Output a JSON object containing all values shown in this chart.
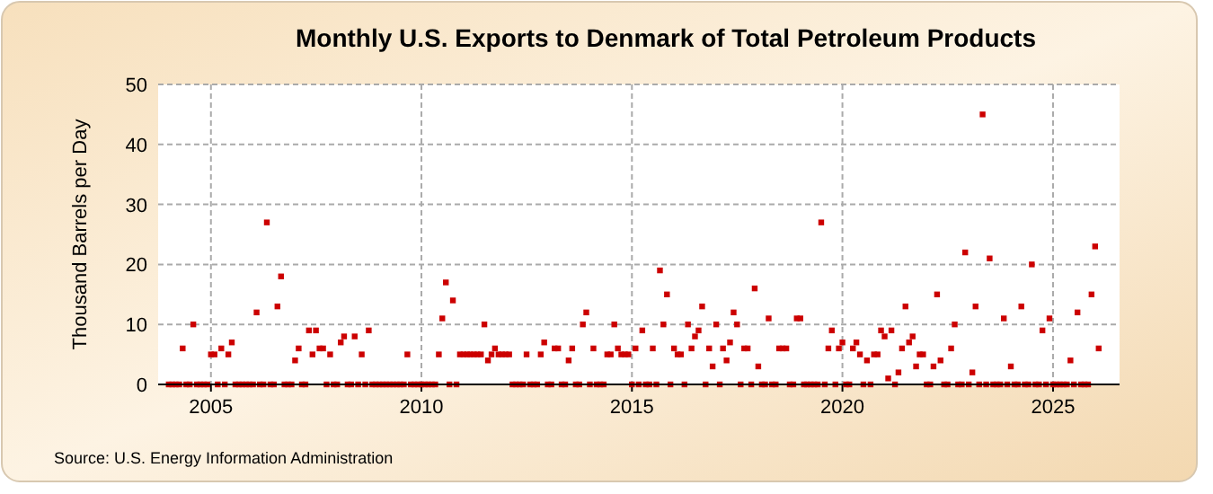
{
  "chart_data": {
    "type": "scatter",
    "title": "Monthly U.S. Exports to Denmark of Total Petroleum Products",
    "ylabel": "Thousand Barrels per Day",
    "annotations": [
      "Source: U.S. Energy Information Administration"
    ],
    "x": [
      "2004-01",
      "2004-02",
      "2004-03",
      "2004-04",
      "2004-05",
      "2004-06",
      "2004-07",
      "2004-08",
      "2004-09",
      "2004-10",
      "2004-11",
      "2004-12",
      "2005-01",
      "2005-02",
      "2005-03",
      "2005-04",
      "2005-05",
      "2005-06",
      "2005-07",
      "2005-08",
      "2005-09",
      "2005-10",
      "2005-11",
      "2005-12",
      "2006-01",
      "2006-02",
      "2006-03",
      "2006-04",
      "2006-05",
      "2006-06",
      "2006-07",
      "2006-08",
      "2006-09",
      "2006-10",
      "2006-11",
      "2006-12",
      "2007-01",
      "2007-02",
      "2007-03",
      "2007-04",
      "2007-05",
      "2007-06",
      "2007-07",
      "2007-08",
      "2007-09",
      "2007-10",
      "2007-11",
      "2007-12",
      "2008-01",
      "2008-02",
      "2008-03",
      "2008-04",
      "2008-05",
      "2008-06",
      "2008-07",
      "2008-08",
      "2008-09",
      "2008-10",
      "2008-11",
      "2008-12",
      "2009-01",
      "2009-02",
      "2009-03",
      "2009-04",
      "2009-05",
      "2009-06",
      "2009-07",
      "2009-08",
      "2009-09",
      "2009-10",
      "2009-11",
      "2009-12",
      "2010-01",
      "2010-02",
      "2010-03",
      "2010-04",
      "2010-05",
      "2010-06",
      "2010-07",
      "2010-08",
      "2010-09",
      "2010-10",
      "2010-11",
      "2010-12",
      "2011-01",
      "2011-02",
      "2011-03",
      "2011-04",
      "2011-05",
      "2011-06",
      "2011-07",
      "2011-08",
      "2011-09",
      "2011-10",
      "2011-11",
      "2011-12",
      "2012-01",
      "2012-02",
      "2012-03",
      "2012-04",
      "2012-05",
      "2012-06",
      "2012-07",
      "2012-08",
      "2012-09",
      "2012-10",
      "2012-11",
      "2012-12",
      "2013-01",
      "2013-02",
      "2013-03",
      "2013-04",
      "2013-05",
      "2013-06",
      "2013-07",
      "2013-08",
      "2013-09",
      "2013-10",
      "2013-11",
      "2013-12",
      "2014-01",
      "2014-02",
      "2014-03",
      "2014-04",
      "2014-05",
      "2014-06",
      "2014-07",
      "2014-08",
      "2014-09",
      "2014-10",
      "2014-11",
      "2014-12",
      "2015-01",
      "2015-02",
      "2015-03",
      "2015-04",
      "2015-05",
      "2015-06",
      "2015-07",
      "2015-08",
      "2015-09",
      "2015-10",
      "2015-11",
      "2015-12",
      "2016-01",
      "2016-02",
      "2016-03",
      "2016-04",
      "2016-05",
      "2016-06",
      "2016-07",
      "2016-08",
      "2016-09",
      "2016-10",
      "2016-11",
      "2016-12",
      "2017-01",
      "2017-02",
      "2017-03",
      "2017-04",
      "2017-05",
      "2017-06",
      "2017-07",
      "2017-08",
      "2017-09",
      "2017-10",
      "2017-11",
      "2017-12",
      "2018-01",
      "2018-02",
      "2018-03",
      "2018-04",
      "2018-05",
      "2018-06",
      "2018-07",
      "2018-08",
      "2018-09",
      "2018-10",
      "2018-11",
      "2018-12",
      "2019-01",
      "2019-02",
      "2019-03",
      "2019-04",
      "2019-05",
      "2019-06",
      "2019-07",
      "2019-08",
      "2019-09",
      "2019-10",
      "2019-11",
      "2019-12",
      "2020-01",
      "2020-02",
      "2020-03",
      "2020-04",
      "2020-05",
      "2020-06",
      "2020-07",
      "2020-08",
      "2020-09",
      "2020-10",
      "2020-11",
      "2020-12",
      "2021-01",
      "2021-02",
      "2021-03",
      "2021-04",
      "2021-05",
      "2021-06",
      "2021-07",
      "2021-08",
      "2021-09",
      "2021-10",
      "2021-11",
      "2021-12",
      "2022-01",
      "2022-02",
      "2022-03",
      "2022-04",
      "2022-05",
      "2022-06",
      "2022-07",
      "2022-08",
      "2022-09",
      "2022-10",
      "2022-11",
      "2022-12",
      "2023-01",
      "2023-02",
      "2023-03",
      "2023-04",
      "2023-05",
      "2023-06",
      "2023-07",
      "2023-08",
      "2023-09",
      "2023-10",
      "2023-11",
      "2023-12",
      "2024-01",
      "2024-02",
      "2024-03",
      "2024-04",
      "2024-05",
      "2024-06",
      "2024-07",
      "2024-08",
      "2024-09",
      "2024-10",
      "2024-11",
      "2024-12",
      "2025-01",
      "2025-02",
      "2025-03",
      "2025-04",
      "2025-05",
      "2025-06",
      "2025-07",
      "2025-08",
      "2025-09",
      "2025-10",
      "2025-11",
      "2025-12",
      "2026-01",
      "2026-02"
    ],
    "series": [
      {
        "color": "#cc0000",
        "values": [
          0,
          0,
          0,
          0,
          6,
          0,
          0,
          10,
          0,
          0,
          0,
          0,
          5,
          5,
          0,
          6,
          0,
          5,
          7,
          0,
          0,
          0,
          0,
          0,
          0,
          12,
          0,
          0,
          27,
          0,
          0,
          13,
          18,
          0,
          0,
          0,
          4,
          6,
          0,
          0,
          9,
          5,
          9,
          6,
          6,
          0,
          5,
          0,
          0,
          7,
          8,
          0,
          0,
          8,
          0,
          5,
          0,
          9,
          0,
          0,
          0,
          0,
          0,
          0,
          0,
          0,
          0,
          0,
          5,
          0,
          0,
          0,
          0,
          0,
          0,
          0,
          0,
          5,
          11,
          17,
          0,
          14,
          0,
          5,
          5,
          5,
          5,
          5,
          5,
          5,
          10,
          4,
          5,
          6,
          5,
          5,
          5,
          5,
          0,
          0,
          0,
          0,
          5,
          0,
          0,
          0,
          5,
          7,
          0,
          0,
          6,
          6,
          0,
          0,
          4,
          6,
          0,
          0,
          10,
          12,
          0,
          6,
          0,
          0,
          0,
          5,
          5,
          10,
          6,
          5,
          5,
          5,
          0,
          6,
          0,
          9,
          0,
          0,
          6,
          0,
          19,
          10,
          15,
          0,
          6,
          5,
          5,
          0,
          10,
          6,
          8,
          9,
          13,
          0,
          6,
          3,
          10,
          0,
          6,
          4,
          7,
          12,
          10,
          0,
          6,
          6,
          0,
          16,
          3,
          0,
          0,
          11,
          0,
          0,
          6,
          6,
          6,
          0,
          0,
          11,
          11,
          0,
          0,
          0,
          0,
          0,
          27,
          0,
          6,
          9,
          0,
          6,
          7,
          0,
          0,
          6,
          7,
          5,
          0,
          4,
          0,
          5,
          5,
          9,
          8,
          1,
          9,
          0,
          2,
          6,
          13,
          7,
          8,
          3,
          5,
          5,
          0,
          0,
          3,
          15,
          4,
          0,
          0,
          6,
          10,
          0,
          0,
          22,
          0,
          2,
          13,
          0,
          45,
          0,
          21,
          0,
          0,
          0,
          11,
          0,
          3,
          0,
          0,
          13,
          0,
          0,
          20,
          0,
          0,
          9,
          0,
          11,
          0,
          0,
          0,
          0,
          0,
          4,
          0,
          12,
          0,
          0,
          0,
          15,
          23,
          6
        ]
      }
    ],
    "xlim": [
      "2003-10",
      "2026-08"
    ],
    "xticks": [
      "2005",
      "2010",
      "2015",
      "2020",
      "2025"
    ],
    "ylim": [
      0,
      50
    ],
    "yticks": [
      0,
      10,
      20,
      30,
      40,
      50
    ],
    "grid": true,
    "marker": "square"
  }
}
